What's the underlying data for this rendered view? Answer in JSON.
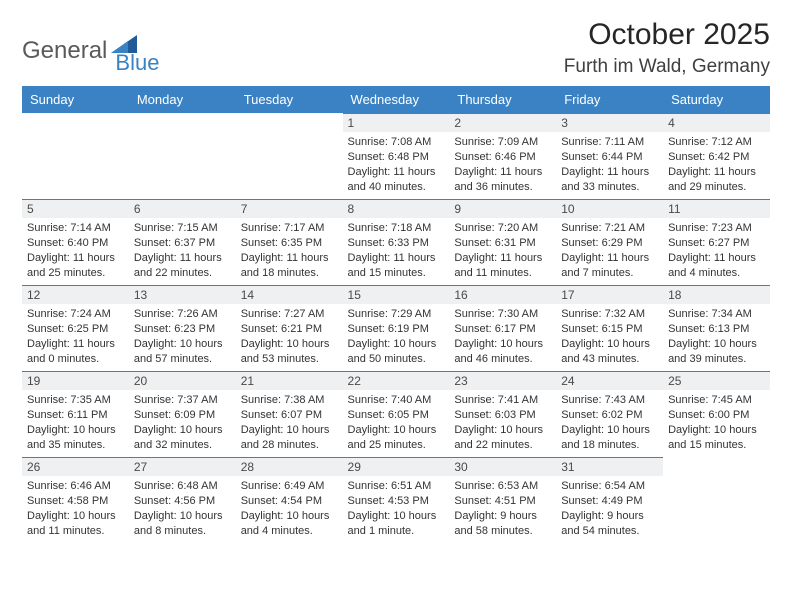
{
  "logo": {
    "part1": "General",
    "part2": "Blue"
  },
  "title": "October 2025",
  "subtitle": "Furth im Wald, Germany",
  "colors": {
    "header_bg": "#3b82c4",
    "header_text": "#ffffff",
    "daynum_bg": "#eef0f2",
    "daynum_border": "#5a7a9a",
    "body_text": "#333333",
    "logo_gray": "#5a5a5a",
    "logo_blue": "#3b82c4"
  },
  "fontsize": {
    "title": 30,
    "subtitle": 19,
    "weekday": 13,
    "daynum": 12,
    "body": 11
  },
  "weekdays": [
    "Sunday",
    "Monday",
    "Tuesday",
    "Wednesday",
    "Thursday",
    "Friday",
    "Saturday"
  ],
  "weeks": [
    [
      null,
      null,
      null,
      {
        "n": "1",
        "sr": "7:08 AM",
        "ss": "6:48 PM",
        "dl": "11 hours and 40 minutes."
      },
      {
        "n": "2",
        "sr": "7:09 AM",
        "ss": "6:46 PM",
        "dl": "11 hours and 36 minutes."
      },
      {
        "n": "3",
        "sr": "7:11 AM",
        "ss": "6:44 PM",
        "dl": "11 hours and 33 minutes."
      },
      {
        "n": "4",
        "sr": "7:12 AM",
        "ss": "6:42 PM",
        "dl": "11 hours and 29 minutes."
      }
    ],
    [
      {
        "n": "5",
        "sr": "7:14 AM",
        "ss": "6:40 PM",
        "dl": "11 hours and 25 minutes."
      },
      {
        "n": "6",
        "sr": "7:15 AM",
        "ss": "6:37 PM",
        "dl": "11 hours and 22 minutes."
      },
      {
        "n": "7",
        "sr": "7:17 AM",
        "ss": "6:35 PM",
        "dl": "11 hours and 18 minutes."
      },
      {
        "n": "8",
        "sr": "7:18 AM",
        "ss": "6:33 PM",
        "dl": "11 hours and 15 minutes."
      },
      {
        "n": "9",
        "sr": "7:20 AM",
        "ss": "6:31 PM",
        "dl": "11 hours and 11 minutes."
      },
      {
        "n": "10",
        "sr": "7:21 AM",
        "ss": "6:29 PM",
        "dl": "11 hours and 7 minutes."
      },
      {
        "n": "11",
        "sr": "7:23 AM",
        "ss": "6:27 PM",
        "dl": "11 hours and 4 minutes."
      }
    ],
    [
      {
        "n": "12",
        "sr": "7:24 AM",
        "ss": "6:25 PM",
        "dl": "11 hours and 0 minutes."
      },
      {
        "n": "13",
        "sr": "7:26 AM",
        "ss": "6:23 PM",
        "dl": "10 hours and 57 minutes."
      },
      {
        "n": "14",
        "sr": "7:27 AM",
        "ss": "6:21 PM",
        "dl": "10 hours and 53 minutes."
      },
      {
        "n": "15",
        "sr": "7:29 AM",
        "ss": "6:19 PM",
        "dl": "10 hours and 50 minutes."
      },
      {
        "n": "16",
        "sr": "7:30 AM",
        "ss": "6:17 PM",
        "dl": "10 hours and 46 minutes."
      },
      {
        "n": "17",
        "sr": "7:32 AM",
        "ss": "6:15 PM",
        "dl": "10 hours and 43 minutes."
      },
      {
        "n": "18",
        "sr": "7:34 AM",
        "ss": "6:13 PM",
        "dl": "10 hours and 39 minutes."
      }
    ],
    [
      {
        "n": "19",
        "sr": "7:35 AM",
        "ss": "6:11 PM",
        "dl": "10 hours and 35 minutes."
      },
      {
        "n": "20",
        "sr": "7:37 AM",
        "ss": "6:09 PM",
        "dl": "10 hours and 32 minutes."
      },
      {
        "n": "21",
        "sr": "7:38 AM",
        "ss": "6:07 PM",
        "dl": "10 hours and 28 minutes."
      },
      {
        "n": "22",
        "sr": "7:40 AM",
        "ss": "6:05 PM",
        "dl": "10 hours and 25 minutes."
      },
      {
        "n": "23",
        "sr": "7:41 AM",
        "ss": "6:03 PM",
        "dl": "10 hours and 22 minutes."
      },
      {
        "n": "24",
        "sr": "7:43 AM",
        "ss": "6:02 PM",
        "dl": "10 hours and 18 minutes."
      },
      {
        "n": "25",
        "sr": "7:45 AM",
        "ss": "6:00 PM",
        "dl": "10 hours and 15 minutes."
      }
    ],
    [
      {
        "n": "26",
        "sr": "6:46 AM",
        "ss": "4:58 PM",
        "dl": "10 hours and 11 minutes."
      },
      {
        "n": "27",
        "sr": "6:48 AM",
        "ss": "4:56 PM",
        "dl": "10 hours and 8 minutes."
      },
      {
        "n": "28",
        "sr": "6:49 AM",
        "ss": "4:54 PM",
        "dl": "10 hours and 4 minutes."
      },
      {
        "n": "29",
        "sr": "6:51 AM",
        "ss": "4:53 PM",
        "dl": "10 hours and 1 minute."
      },
      {
        "n": "30",
        "sr": "6:53 AM",
        "ss": "4:51 PM",
        "dl": "9 hours and 58 minutes."
      },
      {
        "n": "31",
        "sr": "6:54 AM",
        "ss": "4:49 PM",
        "dl": "9 hours and 54 minutes."
      },
      null
    ]
  ],
  "labels": {
    "sunrise": "Sunrise:",
    "sunset": "Sunset:",
    "daylight": "Daylight:"
  }
}
